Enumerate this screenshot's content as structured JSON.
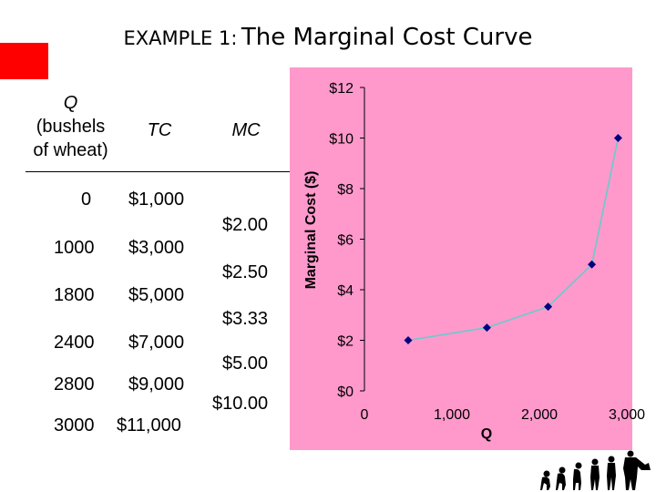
{
  "slide": {
    "title_prefix": "EXAMPLE 1",
    "title_colon": ":",
    "title_main": "The Marginal Cost Curve"
  },
  "table": {
    "headers": {
      "q_symbol": "Q",
      "q_desc_line1": "(bushels",
      "q_desc_line2": "of wheat)",
      "tc": "TC",
      "mc": "MC"
    },
    "rows": [
      {
        "q": "0",
        "tc": "$1,000"
      },
      {
        "q": "1000",
        "tc": "$3,000"
      },
      {
        "q": "1800",
        "tc": "$5,000"
      },
      {
        "q": "2400",
        "tc": "$7,000"
      },
      {
        "q": "2800",
        "tc": "$9,000"
      },
      {
        "q": "3000",
        "tc": "$11,000"
      }
    ],
    "mc_values": [
      "$2.00",
      "$2.50",
      "$3.33",
      "$5.00",
      "$10.00"
    ]
  },
  "chart_data": {
    "type": "line",
    "background": "#ff99cc",
    "line_color": "#66cccc",
    "marker_color": "#000080",
    "x": [
      500,
      1400,
      2100,
      2600,
      2900
    ],
    "y": [
      2.0,
      2.5,
      3.33,
      5.0,
      10.0
    ],
    "xlim": [
      0,
      3000
    ],
    "ylim": [
      0,
      12
    ],
    "xticks": [
      0,
      1000,
      2000,
      3000
    ],
    "xtick_labels": [
      "0",
      "1,000",
      "2,000",
      "3,000"
    ],
    "yticks": [
      0,
      2,
      4,
      6,
      8,
      10,
      12
    ],
    "ytick_labels": [
      "$0",
      "$2",
      "$4",
      "$6",
      "$8",
      "$10",
      "$12"
    ],
    "xlabel": "Q",
    "ylabel": "Marginal Cost ($)",
    "grid": false
  }
}
